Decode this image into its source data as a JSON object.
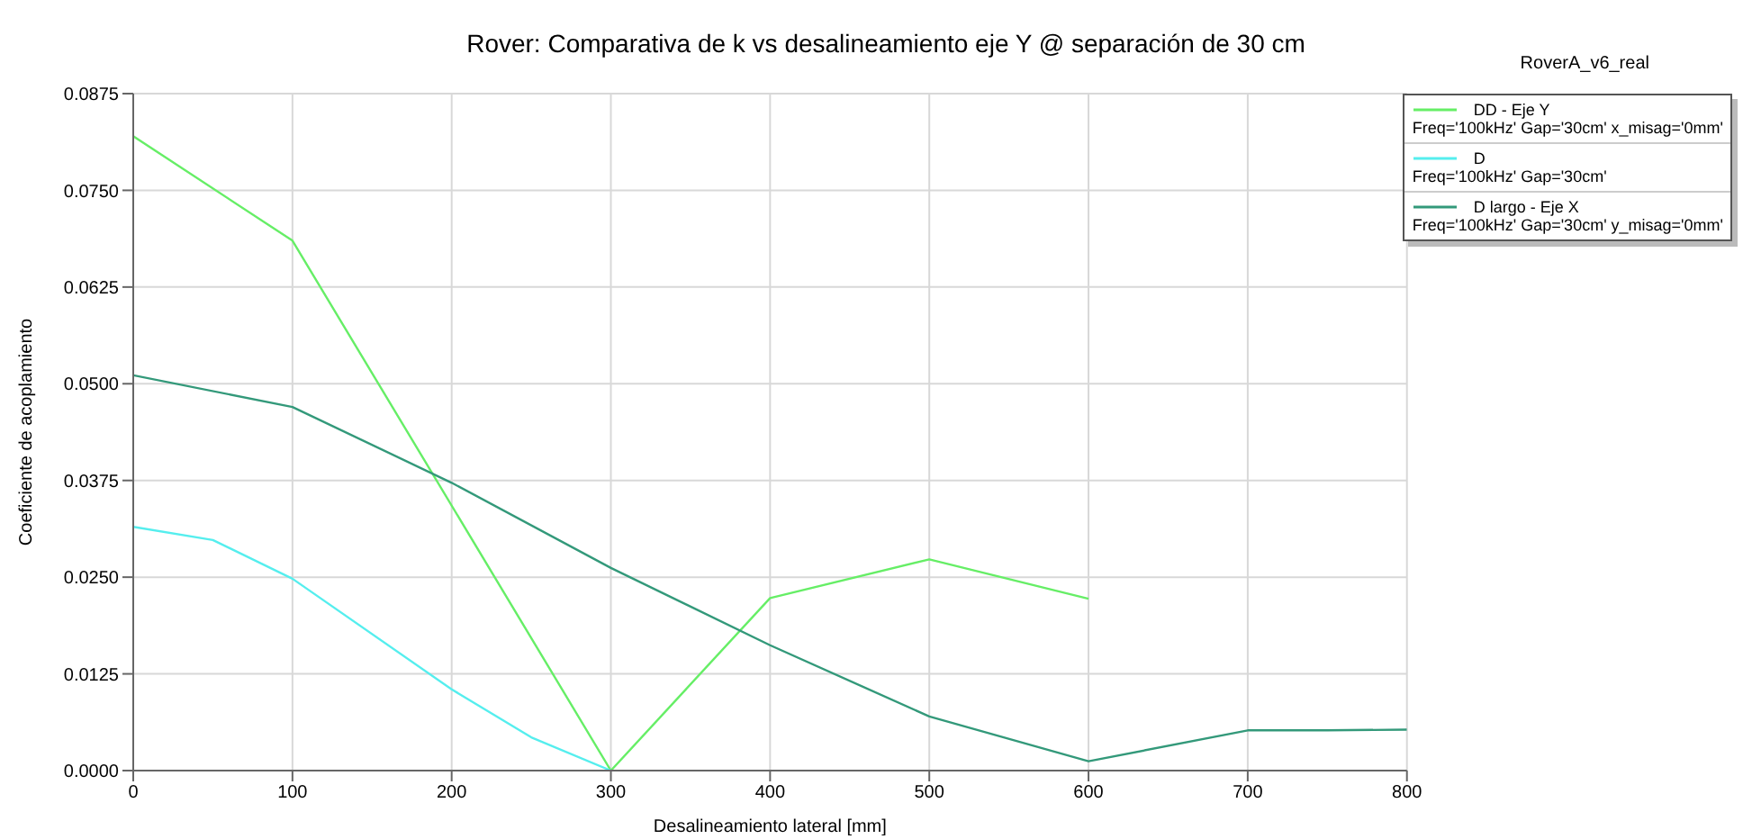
{
  "chart_data": {
    "type": "line",
    "title": "Rover: Comparativa de k vs desalineamiento eje Y @ separación de 30 cm",
    "xlabel": "Desalineamiento lateral [mm]",
    "ylabel": "Coeficiente de acoplamiento",
    "annotations": [
      "RoverA_v6_real"
    ],
    "series": [
      {
        "name": "DD - Eje Y\nFreq='100kHz' Gap='30cm' x_misag='0mm'",
        "color": "#66ee66",
        "x": [
          0,
          100,
          300,
          400,
          500,
          600
        ],
        "values": [
          0.082,
          0.0685,
          0,
          0.0223,
          0.0273,
          0.0222
        ]
      },
      {
        "name": "D\nFreq='100kHz' Gap='30cm'",
        "color": "#55eeee",
        "x": [
          0,
          50,
          100,
          200,
          250,
          300
        ],
        "values": [
          0.0315,
          0.0298,
          0.0248,
          0.0105,
          0.0043,
          0
        ]
      },
      {
        "name": "D largo - Eje X\nFreq='100kHz' Gap='30cm' y_misag='0mm'",
        "color": "#33997a",
        "x": [
          0,
          100,
          200,
          300,
          400,
          500,
          600,
          700,
          750,
          800
        ],
        "values": [
          0.0511,
          0.047,
          0.0372,
          0.0262,
          0.0162,
          0.007,
          0.0012,
          0.0052,
          0.0052,
          0.0053
        ]
      }
    ],
    "xlim": [
      0,
      800
    ],
    "xticks": [
      0,
      100,
      200,
      300,
      400,
      500,
      600,
      700,
      800
    ],
    "ylim": [
      0,
      0.0875
    ],
    "yticks": [
      {
        "value": 0,
        "label": "0.0000"
      },
      {
        "value": 0.0125,
        "label": "0.0125"
      },
      {
        "value": 0.025,
        "label": "0.0250"
      },
      {
        "value": 0.0375,
        "label": "0.0375"
      },
      {
        "value": 0.05,
        "label": "0.0500"
      },
      {
        "value": 0.0625,
        "label": "0.0625"
      },
      {
        "value": 0.075,
        "label": "0.0750"
      },
      {
        "value": 0.0875,
        "label": "0.0875"
      }
    ],
    "grid": true,
    "legend": "top right",
    "marker": "none",
    "line_style": "solid"
  }
}
